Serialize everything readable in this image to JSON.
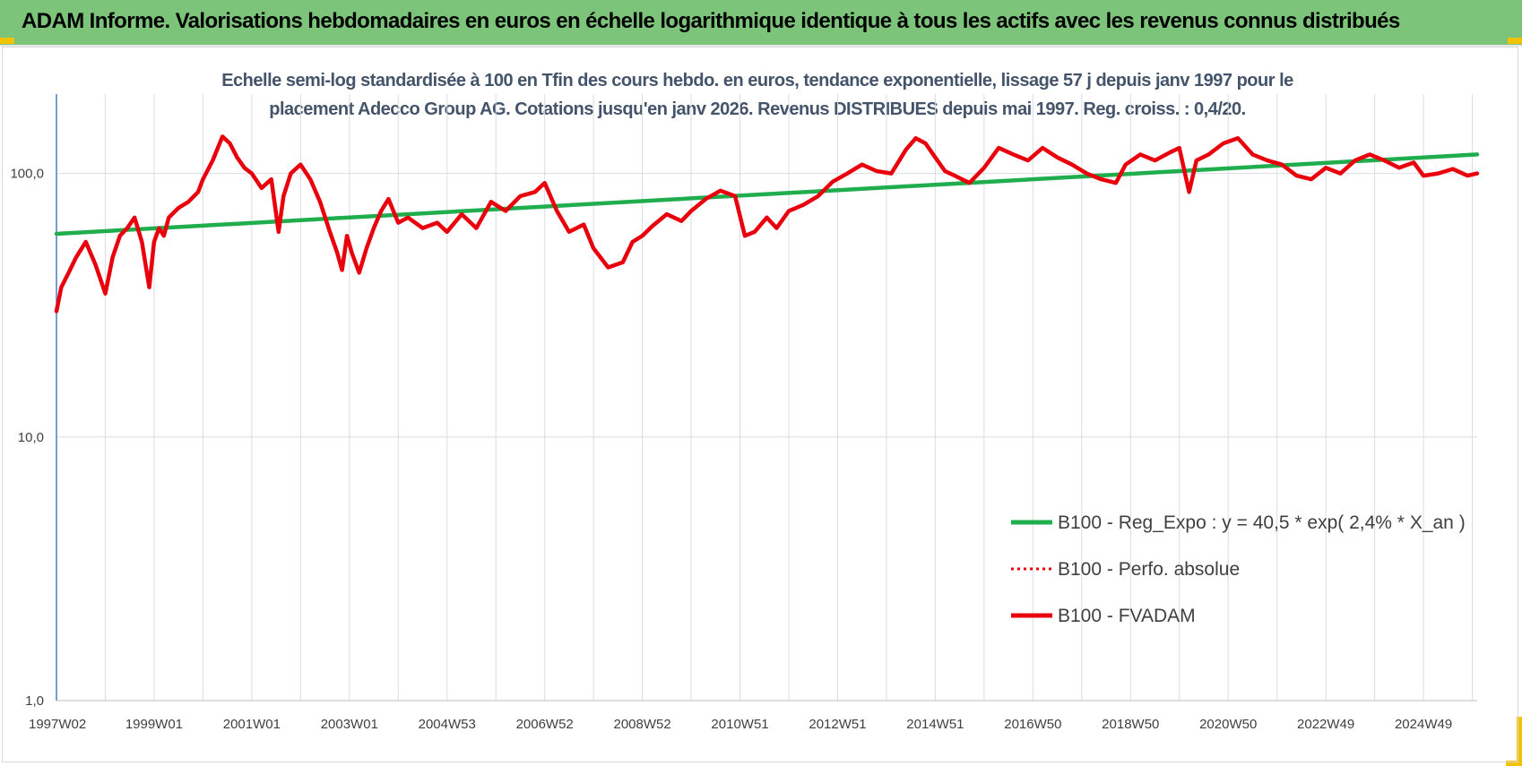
{
  "banner": {
    "title": "ADAM Informe. Valorisations hebdomadaires en euros en échelle logarithmique identique à tous les actifs avec les revenus connus distribués"
  },
  "colors": {
    "banner_bg": "#7dc47b",
    "corner_accent": "#f2c200",
    "regression": "#1fad4e",
    "fvadam": "#e8000d",
    "perfo": "#e8000d",
    "title_text": "#44546a",
    "grid": "#d9dde2",
    "axis": "#4a7ec0"
  },
  "chart_data": {
    "type": "line",
    "title_lines": [
      "Echelle semi-log standardisée à 100 en Tfin des cours hebdo. en euros, tendance exponentielle, lissage 57 j depuis janv 1997 pour le",
      "placement Adecco Group AG. Cotations jusqu'en janv 2026. Revenus DISTRIBUES depuis mai 1997. Reg. croiss. : 0,4/20."
    ],
    "y_scale": "log",
    "ylim": [
      1,
      200
    ],
    "y_ticks": [
      {
        "value": 1,
        "label": "1,0"
      },
      {
        "value": 10,
        "label": "10,0"
      },
      {
        "value": 100,
        "label": "100,0"
      }
    ],
    "xlim": [
      1997.0,
      2026.1
    ],
    "x_ticks": [
      {
        "value": 1997.0,
        "label": "1997W02"
      },
      {
        "value": 1999.0,
        "label": "1999W01"
      },
      {
        "value": 2001.0,
        "label": "2001W01"
      },
      {
        "value": 2003.0,
        "label": "2003W01"
      },
      {
        "value": 2005.0,
        "label": "2004W53"
      },
      {
        "value": 2007.0,
        "label": "2006W52"
      },
      {
        "value": 2009.0,
        "label": "2008W52"
      },
      {
        "value": 2011.0,
        "label": "2010W51"
      },
      {
        "value": 2013.0,
        "label": "2012W51"
      },
      {
        "value": 2015.0,
        "label": "2014W51"
      },
      {
        "value": 2017.0,
        "label": "2016W50"
      },
      {
        "value": 2019.0,
        "label": "2018W50"
      },
      {
        "value": 2021.0,
        "label": "2020W50"
      },
      {
        "value": 2023.0,
        "label": "2022W49"
      },
      {
        "value": 2025.0,
        "label": "2024W49"
      }
    ],
    "grid": true,
    "legend_position": "bottom-right",
    "series": [
      {
        "name": "B100 - Reg_Expo : y = 40,5 * exp( 2,4% *  X_an )",
        "style": "solid-thick",
        "x": [
          1997.0,
          2026.1
        ],
        "y": [
          59,
          118
        ]
      },
      {
        "name": "B100 - Perfo. absolue",
        "style": "dotted",
        "x": [],
        "y": []
      },
      {
        "name": "B100 - FVADAM",
        "style": "solid-thick",
        "x": [
          1997.0,
          1997.1,
          1997.25,
          1997.4,
          1997.6,
          1997.8,
          1998.0,
          1998.15,
          1998.3,
          1998.45,
          1998.6,
          1998.75,
          1998.9,
          1999.0,
          1999.1,
          1999.2,
          1999.3,
          1999.5,
          1999.7,
          1999.9,
          2000.0,
          2000.2,
          2000.4,
          2000.55,
          2000.7,
          2000.85,
          2001.0,
          2001.2,
          2001.4,
          2001.55,
          2001.65,
          2001.8,
          2002.0,
          2002.2,
          2002.4,
          2002.6,
          2002.75,
          2002.85,
          2002.95,
          2003.05,
          2003.2,
          2003.35,
          2003.5,
          2003.65,
          2003.8,
          2004.0,
          2004.2,
          2004.5,
          2004.8,
          2005.0,
          2005.3,
          2005.6,
          2005.9,
          2006.2,
          2006.5,
          2006.8,
          2007.0,
          2007.25,
          2007.5,
          2007.8,
          2008.0,
          2008.3,
          2008.6,
          2008.8,
          2009.0,
          2009.2,
          2009.5,
          2009.8,
          2010.0,
          2010.3,
          2010.6,
          2010.9,
          2011.1,
          2011.3,
          2011.55,
          2011.75,
          2012.0,
          2012.3,
          2012.6,
          2012.9,
          2013.2,
          2013.5,
          2013.8,
          2014.1,
          2014.4,
          2014.6,
          2014.8,
          2015.0,
          2015.2,
          2015.4,
          2015.7,
          2016.0,
          2016.3,
          2016.6,
          2016.9,
          2017.2,
          2017.5,
          2017.8,
          2018.1,
          2018.4,
          2018.7,
          2018.9,
          2019.2,
          2019.5,
          2019.8,
          2020.0,
          2020.2,
          2020.35,
          2020.6,
          2020.9,
          2021.2,
          2021.5,
          2021.8,
          2022.1,
          2022.4,
          2022.7,
          2023.0,
          2023.3,
          2023.6,
          2023.9,
          2024.2,
          2024.5,
          2024.8,
          2025.0,
          2025.3,
          2025.6,
          2025.9,
          2026.1
        ],
        "y": [
          30,
          37,
          42,
          48,
          55,
          45,
          35,
          48,
          58,
          62,
          68,
          55,
          37,
          55,
          62,
          58,
          68,
          74,
          78,
          85,
          95,
          112,
          138,
          130,
          115,
          105,
          100,
          88,
          95,
          60,
          82,
          100,
          108,
          95,
          78,
          60,
          50,
          43,
          58,
          50,
          42,
          52,
          62,
          72,
          80,
          65,
          68,
          62,
          65,
          60,
          70,
          62,
          78,
          72,
          82,
          85,
          92,
          72,
          60,
          64,
          52,
          44,
          46,
          55,
          58,
          63,
          70,
          66,
          72,
          80,
          86,
          82,
          58,
          60,
          68,
          62,
          72,
          76,
          82,
          93,
          100,
          108,
          102,
          100,
          123,
          136,
          130,
          115,
          102,
          98,
          92,
          105,
          125,
          118,
          112,
          125,
          115,
          108,
          100,
          95,
          92,
          108,
          118,
          112,
          120,
          125,
          85,
          112,
          118,
          130,
          136,
          118,
          112,
          108,
          98,
          95,
          105,
          100,
          112,
          118,
          112,
          105,
          110,
          98,
          100,
          104,
          98,
          100
        ]
      }
    ]
  }
}
